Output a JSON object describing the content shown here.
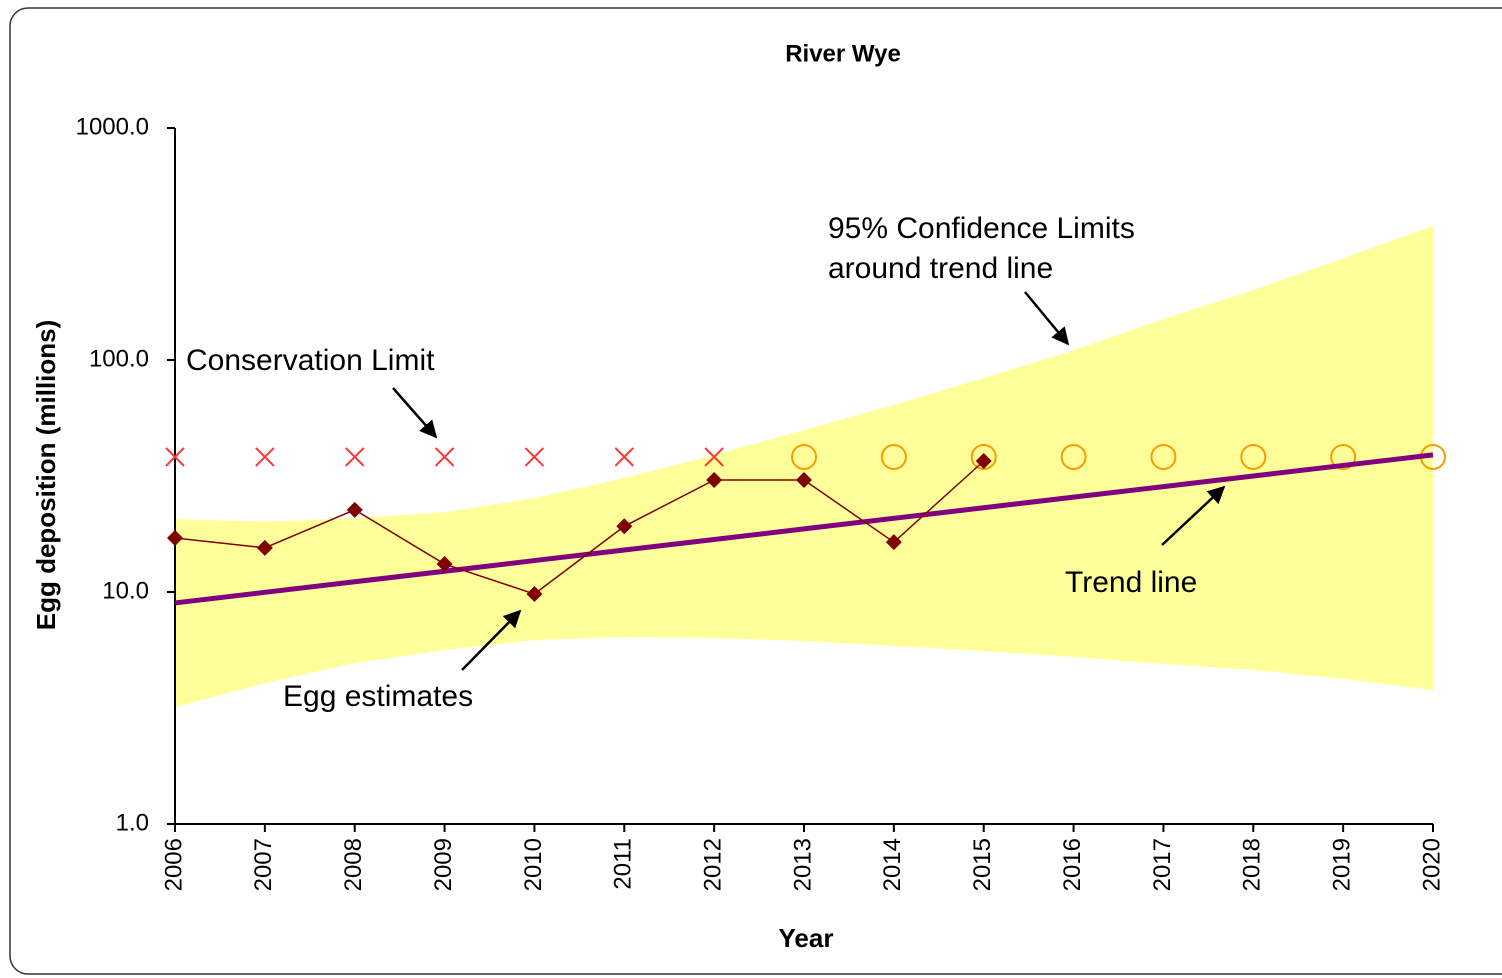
{
  "chart_data": {
    "type": "line",
    "title": "River Wye",
    "x_label": "Year",
    "y_label": "Egg deposition (millions)",
    "x": [
      2006,
      2007,
      2008,
      2009,
      2010,
      2011,
      2012,
      2013,
      2014,
      2015,
      2016,
      2017,
      2018,
      2019,
      2020
    ],
    "xlim": [
      2006,
      2020
    ],
    "xticks": [
      2006,
      2007,
      2008,
      2009,
      2010,
      2011,
      2012,
      2013,
      2014,
      2015,
      2016,
      2017,
      2018,
      2019,
      2020
    ],
    "ylim": [
      1,
      1000
    ],
    "yticks": [
      {
        "value": 1,
        "label": "1.0"
      },
      {
        "value": 10,
        "label": "10.0"
      },
      {
        "value": 100,
        "label": "100.0"
      },
      {
        "value": 1000,
        "label": "1000.0"
      }
    ],
    "log_y": true,
    "band": {
      "color": "#ffff99",
      "upper": [
        20.6,
        20.1,
        20.8,
        22.1,
        25.4,
        31.0,
        38.9,
        49.9,
        64.0,
        83.6,
        110,
        150,
        200,
        275,
        378
      ],
      "lower": [
        3.19,
        4.05,
        4.94,
        5.62,
        6.21,
        6.4,
        6.33,
        6.15,
        5.85,
        5.57,
        5.25,
        4.9,
        4.61,
        4.22,
        3.78
      ]
    },
    "series": [
      {
        "marker": "cross",
        "color": "#ff3333",
        "values": [
          38.2,
          38.2,
          38.2,
          38.2,
          38.2,
          38.2,
          38.2,
          null,
          null,
          null,
          null,
          null,
          null,
          null,
          null
        ]
      },
      {
        "marker": "circle",
        "color": "#ff9900",
        "values": [
          null,
          null,
          null,
          null,
          null,
          null,
          null,
          38.2,
          38.2,
          38.2,
          38.2,
          38.2,
          38.2,
          38.2,
          38.2
        ]
      },
      {
        "marker": "none",
        "line": true,
        "color": "#800080",
        "values": [
          8.97,
          9.97,
          11.07,
          12.29,
          13.66,
          15.17,
          16.84,
          18.71,
          20.78,
          23.08,
          25.63,
          28.47,
          31.62,
          35.12,
          38.99
        ]
      },
      {
        "marker": "diamond",
        "line": true,
        "color": "#800000",
        "values": [
          17.1,
          15.5,
          22.6,
          13.2,
          9.8,
          19.2,
          30.4,
          30.4,
          16.4,
          36.7,
          null,
          null,
          null,
          null,
          null
        ]
      }
    ],
    "annotations": [
      "Conservation Limit",
      "95% Confidence Limits",
      "around trend line",
      "Egg estimates",
      "Trend line"
    ]
  }
}
